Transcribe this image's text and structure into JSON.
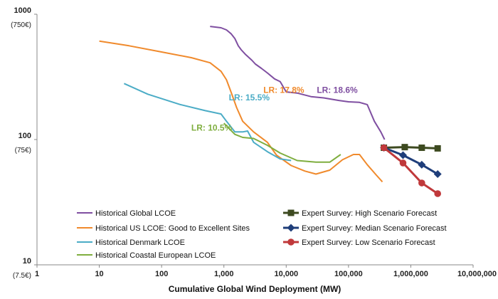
{
  "chart_data": {
    "type": "line",
    "title": "",
    "xlabel": "Cumulative Global Wind Deployment (MW)",
    "ylabel": "",
    "x_scale": "log",
    "y_scale": "log",
    "xlim": [
      1,
      10000000
    ],
    "ylim": [
      10,
      1000
    ],
    "x_ticks": [
      {
        "value": 1,
        "label": "1"
      },
      {
        "value": 10,
        "label": "10"
      },
      {
        "value": 100,
        "label": "100"
      },
      {
        "value": 1000,
        "label": "1,000"
      },
      {
        "value": 10000,
        "label": "10,000"
      },
      {
        "value": 100000,
        "label": "100,000"
      },
      {
        "value": 1000000,
        "label": "1,000,000"
      },
      {
        "value": 10000000,
        "label": "10,000,000"
      }
    ],
    "y_ticks": [
      {
        "value": 1000,
        "label": "1000",
        "sub": "(750€)"
      },
      {
        "value": 100,
        "label": "100",
        "sub": "(75€)"
      },
      {
        "value": 10,
        "label": "10",
        "sub": "(7.5€)"
      }
    ],
    "series": [
      {
        "name": "Historical Global LCOE",
        "color": "#7f4fa1",
        "marker": "none",
        "x": [
          600,
          900,
          1100,
          1300,
          1500,
          1700,
          1900,
          2200,
          2800,
          3200,
          4000,
          5000,
          6500,
          8000,
          10000,
          15000,
          25000,
          40000,
          70000,
          100000,
          150000,
          200000,
          260000,
          330000,
          380000
        ],
        "y": [
          800,
          780,
          750,
          700,
          640,
          560,
          520,
          480,
          430,
          400,
          370,
          340,
          305,
          290,
          240,
          235,
          220,
          215,
          205,
          200,
          198,
          190,
          140,
          115,
          100
        ]
      },
      {
        "name": "Historical US LCOE: Good to Excellent Sites",
        "color": "#f08a2c",
        "marker": "none",
        "x": [
          10,
          30,
          100,
          300,
          600,
          900,
          1100,
          1300,
          1600,
          2000,
          3000,
          5000,
          7000,
          12000,
          20000,
          30000,
          50000,
          80000,
          120000,
          150000,
          200000,
          280000,
          350000
        ],
        "y": [
          610,
          560,
          500,
          450,
          410,
          350,
          300,
          240,
          180,
          140,
          115,
          95,
          75,
          62,
          56,
          53,
          57,
          69,
          76,
          76,
          63,
          52,
          46
        ]
      },
      {
        "name": "Historical Denmark LCOE",
        "color": "#4bacc6",
        "marker": "none",
        "x": [
          25,
          60,
          200,
          500,
          900,
          1100,
          1500,
          2000,
          2400,
          3000,
          5000,
          8000,
          12000
        ],
        "y": [
          280,
          230,
          190,
          170,
          160,
          140,
          115,
          115,
          117,
          95,
          80,
          70,
          68
        ]
      },
      {
        "name": "Historical Coastal European LCOE",
        "color": "#7fae3f",
        "marker": "none",
        "x": [
          1000,
          1500,
          2000,
          3000,
          5000,
          8000,
          15000,
          30000,
          50000,
          75000
        ],
        "y": [
          135,
          110,
          104,
          102,
          90,
          78,
          68,
          66,
          66,
          76
        ]
      },
      {
        "name": "Expert Survey: High Scenario Forecast",
        "color": "#3d4a20",
        "marker": "square",
        "x": [
          370000,
          800000,
          1500000,
          2700000
        ],
        "y": [
          86,
          87,
          86,
          85
        ]
      },
      {
        "name": "Expert Survey: Median Scenario  Forecast",
        "color": "#1f3e7a",
        "marker": "diamond",
        "x": [
          370000,
          750000,
          1500000,
          2700000
        ],
        "y": [
          86,
          75,
          63,
          53
        ]
      },
      {
        "name": "Expert Survey: Low Scenario Forecast",
        "color": "#c0393b",
        "marker": "circle",
        "x": [
          370000,
          750000,
          1500000,
          2700000
        ],
        "y": [
          86,
          65,
          45,
          37
        ]
      }
    ],
    "annotations": [
      {
        "text": "LR:  15.5%",
        "x": 1200,
        "y": 205,
        "color": "#4bacc6"
      },
      {
        "text": "LR: 17.8%",
        "x": 4300,
        "y": 235,
        "color": "#f08a2c"
      },
      {
        "text": "LR: 18.6%",
        "x": 31000,
        "y": 235,
        "color": "#7f4fa1"
      },
      {
        "text": "LR: 10.5%",
        "x": 300,
        "y": 118,
        "color": "#7fae3f"
      }
    ],
    "legend_position": "bottom-inside",
    "legend_order": [
      0,
      4,
      1,
      5,
      2,
      6,
      3
    ]
  }
}
